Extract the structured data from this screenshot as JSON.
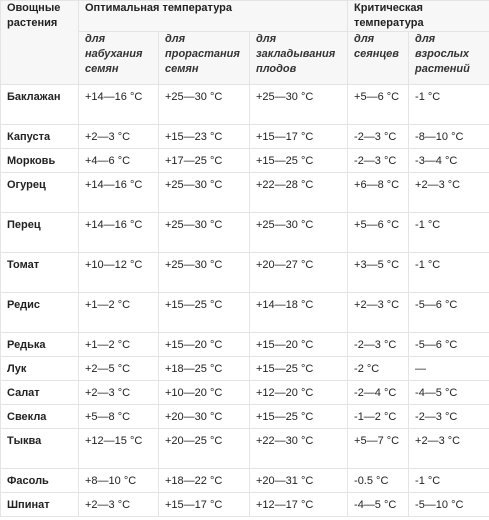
{
  "header": {
    "vegetable_col": "Овощные растения",
    "optimal_group": "Оптимальная температура",
    "critical_group": "Критическая температура",
    "sub": {
      "swelling": "для набухания семян",
      "germination": "для прорастания семян",
      "fruit_setting": "для закладывания плодов",
      "seedlings": "для сеянцев",
      "adult": "для взрослых растений"
    }
  },
  "rows": [
    {
      "name": "Баклажан",
      "swelling": "+14—16 °С",
      "germination": "+25—30 °С",
      "fruit": "+25—30 °С",
      "seedlings": "+5—6 °С",
      "adult": "-1 °С"
    },
    {
      "name": "Капуста",
      "swelling": "+2—3 °С",
      "germination": "+15—23 °С",
      "fruit": "+15—17 °С",
      "seedlings": "-2—3 °С",
      "adult": "-8—10 °С"
    },
    {
      "name": "Морковь",
      "swelling": "+4—6 °С",
      "germination": "+17—25 °С",
      "fruit": "+15—25 °С",
      "seedlings": "-2—3 °С",
      "adult": "-3—4 °С"
    },
    {
      "name": "Огурец",
      "swelling": "+14—16 °С",
      "germination": "+25—30 °С",
      "fruit": "+22—28 °С",
      "seedlings": "+6—8 °С",
      "adult": "+2—3 °С"
    },
    {
      "name": "Перец",
      "swelling": "+14—16 °С",
      "germination": "+25—30 °С",
      "fruit": "+25—30 °С",
      "seedlings": "+5—6 °С",
      "adult": "-1 °С"
    },
    {
      "name": "Томат",
      "swelling": "+10—12 °С",
      "germination": "+25—30 °С",
      "fruit": "+20—27 °С",
      "seedlings": "+3—5 °С",
      "adult": "-1 °С"
    },
    {
      "name": "Редис",
      "swelling": "+1—2 °С",
      "germination": "+15—25 °С",
      "fruit": "+14—18 °С",
      "seedlings": "+2—3 °С",
      "adult": "-5—6 °С"
    },
    {
      "name": "Редька",
      "swelling": "+1—2 °С",
      "germination": "+15—20 °С",
      "fruit": "+15—20 °С",
      "seedlings": "-2—3 °С",
      "adult": "-5—6 °С"
    },
    {
      "name": "Лук",
      "swelling": "+2—5 °С",
      "germination": "+18—25 °С",
      "fruit": "+15—25 °С",
      "seedlings": "-2 °С",
      "adult": "—"
    },
    {
      "name": "Салат",
      "swelling": "+2—3 °С",
      "germination": "+10—20 °С",
      "fruit": "+12—20 °С",
      "seedlings": "-2—4 °С",
      "adult": "-4—5 °С"
    },
    {
      "name": "Свекла",
      "swelling": "+5—8 °С",
      "germination": "+20—30 °С",
      "fruit": "+15—25 °С",
      "seedlings": "-1—2 °С",
      "adult": "-2—3 °С"
    },
    {
      "name": "Тыква",
      "swelling": "+12—15 °С",
      "germination": "+20—25 °С",
      "fruit": "+22—30 °С",
      "seedlings": "+5—7 °С",
      "adult": "+2—3 °С"
    },
    {
      "name": "Фасоль",
      "swelling": "+8—10 °С",
      "germination": "+18—22 °С",
      "fruit": "+20—31 °С",
      "seedlings": "-0.5 °С",
      "adult": "-1 °С"
    },
    {
      "name": "Шпинат",
      "swelling": "+2—3 °С",
      "germination": "+15—17 °С",
      "fruit": "+12—17 °С",
      "seedlings": "-4—5 °С",
      "adult": "-5—10 °С"
    }
  ]
}
